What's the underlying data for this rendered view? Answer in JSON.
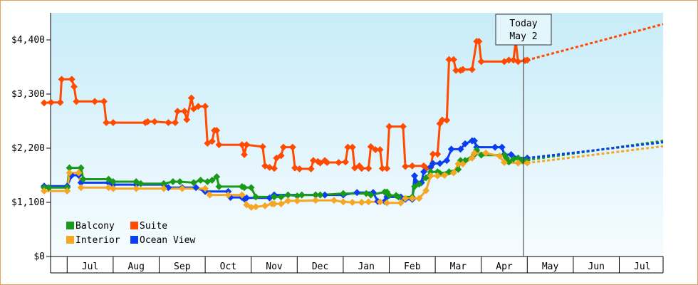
{
  "chart_data": {
    "type": "line",
    "y_ticks": [
      "$0",
      "$1,100",
      "$2,200",
      "$3,300",
      "$4,400"
    ],
    "y_tick_values": [
      0,
      1100,
      2200,
      3300,
      4400
    ],
    "ylim": [
      0,
      4950
    ],
    "x_months": [
      "Jul",
      "Aug",
      "Sep",
      "Oct",
      "Nov",
      "Dec",
      "Jan",
      "Feb",
      "Mar",
      "Apr",
      "May",
      "Jun",
      "Jul"
    ],
    "grid": false,
    "legend": {
      "placement": "bottom-left",
      "entries": [
        {
          "label": "Balcony",
          "color": "#1a9a1a"
        },
        {
          "label": "Suite",
          "color": "#ff4a00"
        },
        {
          "label": "Interior",
          "color": "#f5a623"
        },
        {
          "label": "Ocean View",
          "color": "#0a3ef0"
        }
      ]
    },
    "today_marker": {
      "line1": "Today",
      "line2": "May 2"
    },
    "series": [
      {
        "name": "Suite",
        "color": "#ff4a00",
        "points": [
          [
            0,
            3120
          ],
          [
            0.15,
            3130
          ],
          [
            0.35,
            3130
          ],
          [
            0.38,
            3600
          ],
          [
            0.6,
            3600
          ],
          [
            0.65,
            3450
          ],
          [
            0.7,
            3150
          ],
          [
            1.1,
            3150
          ],
          [
            1.3,
            3150
          ],
          [
            1.35,
            2720
          ],
          [
            1.5,
            2720
          ],
          [
            2.2,
            2720
          ],
          [
            2.25,
            2740
          ],
          [
            2.4,
            2740
          ],
          [
            2.7,
            2720
          ],
          [
            2.85,
            2720
          ],
          [
            2.9,
            2950
          ],
          [
            3.05,
            2950
          ],
          [
            3.1,
            2780
          ],
          [
            3.2,
            3220
          ],
          [
            3.25,
            3000
          ],
          [
            3.35,
            3050
          ],
          [
            3.5,
            3050
          ],
          [
            3.55,
            2300
          ],
          [
            3.65,
            2340
          ],
          [
            3.7,
            2560
          ],
          [
            3.75,
            2560
          ],
          [
            3.8,
            2270
          ],
          [
            4.3,
            2270
          ],
          [
            4.35,
            2070
          ],
          [
            4.4,
            2270
          ],
          [
            4.75,
            2230
          ],
          [
            4.8,
            1840
          ],
          [
            4.9,
            1810
          ],
          [
            5.0,
            1790
          ],
          [
            5.05,
            2000
          ],
          [
            5.15,
            2050
          ],
          [
            5.2,
            2220
          ],
          [
            5.4,
            2220
          ],
          [
            5.45,
            1800
          ],
          [
            5.55,
            1780
          ],
          [
            5.8,
            1780
          ],
          [
            5.85,
            1950
          ],
          [
            5.95,
            1930
          ],
          [
            6.0,
            1900
          ],
          [
            6.1,
            1950
          ],
          [
            6.15,
            1910
          ],
          [
            6.4,
            1910
          ],
          [
            6.55,
            1920
          ],
          [
            6.6,
            2220
          ],
          [
            6.7,
            2220
          ],
          [
            6.75,
            1800
          ],
          [
            6.85,
            1840
          ],
          [
            6.9,
            1790
          ],
          [
            7.05,
            1790
          ],
          [
            7.1,
            2230
          ],
          [
            7.2,
            2170
          ],
          [
            7.3,
            2170
          ],
          [
            7.35,
            1790
          ],
          [
            7.45,
            1790
          ],
          [
            7.5,
            2640
          ],
          [
            7.8,
            2640
          ],
          [
            7.85,
            1830
          ],
          [
            8.0,
            1840
          ],
          [
            8.25,
            1840
          ],
          [
            8.3,
            1800
          ],
          [
            8.4,
            1810
          ],
          [
            8.45,
            2080
          ],
          [
            8.55,
            2080
          ],
          [
            8.6,
            2700
          ],
          [
            8.65,
            2770
          ],
          [
            8.75,
            2770
          ],
          [
            8.8,
            4000
          ],
          [
            8.9,
            4000
          ],
          [
            8.95,
            3780
          ],
          [
            9.05,
            3780
          ],
          [
            9.1,
            3800
          ],
          [
            9.3,
            3800
          ],
          [
            9.4,
            4370
          ],
          [
            9.45,
            4370
          ],
          [
            9.5,
            3960
          ],
          [
            10.0,
            3960
          ],
          [
            10.1,
            3990
          ],
          [
            10.2,
            3990
          ],
          [
            10.25,
            4370
          ],
          [
            10.3,
            3960
          ],
          [
            10.45,
            3980
          ],
          [
            10.5,
            3990
          ]
        ]
      },
      {
        "name": "Ocean View",
        "color": "#0a3ef0",
        "points": [
          [
            0,
            1430
          ],
          [
            0.5,
            1430
          ],
          [
            0.6,
            1650
          ],
          [
            0.75,
            1650
          ],
          [
            0.8,
            1500
          ],
          [
            1.4,
            1500
          ],
          [
            1.5,
            1460
          ],
          [
            2.0,
            1460
          ],
          [
            2.6,
            1460
          ],
          [
            2.7,
            1400
          ],
          [
            3.0,
            1400
          ],
          [
            3.3,
            1400
          ],
          [
            3.5,
            1320
          ],
          [
            4.0,
            1320
          ],
          [
            4.05,
            1200
          ],
          [
            4.3,
            1200
          ],
          [
            4.35,
            1170
          ],
          [
            4.4,
            1190
          ],
          [
            4.9,
            1190
          ],
          [
            5.0,
            1250
          ],
          [
            5.9,
            1250
          ],
          [
            6.1,
            1250
          ],
          [
            6.5,
            1250
          ],
          [
            6.8,
            1300
          ],
          [
            7.15,
            1300
          ],
          [
            7.25,
            1120
          ],
          [
            7.4,
            1120
          ],
          [
            7.45,
            1210
          ],
          [
            7.75,
            1210
          ],
          [
            7.85,
            1160
          ],
          [
            8.0,
            1160
          ],
          [
            8.05,
            1640
          ],
          [
            8.1,
            1500
          ],
          [
            8.2,
            1500
          ],
          [
            8.25,
            1720
          ],
          [
            8.4,
            1820
          ],
          [
            8.45,
            1890
          ],
          [
            8.6,
            1890
          ],
          [
            8.75,
            1950
          ],
          [
            8.85,
            2180
          ],
          [
            9.05,
            2180
          ],
          [
            9.15,
            2290
          ],
          [
            9.3,
            2350
          ],
          [
            9.35,
            2350
          ],
          [
            9.4,
            2220
          ],
          [
            9.8,
            2220
          ],
          [
            9.95,
            2220
          ],
          [
            10.0,
            2070
          ],
          [
            10.15,
            2070
          ],
          [
            10.3,
            2000
          ],
          [
            10.5,
            2000
          ]
        ]
      },
      {
        "name": "Balcony",
        "color": "#1a9a1a",
        "points": [
          [
            0,
            1400
          ],
          [
            0.1,
            1400
          ],
          [
            0.5,
            1400
          ],
          [
            0.55,
            1800
          ],
          [
            0.8,
            1800
          ],
          [
            0.85,
            1570
          ],
          [
            1.4,
            1570
          ],
          [
            1.5,
            1520
          ],
          [
            2.0,
            1520
          ],
          [
            2.1,
            1480
          ],
          [
            2.6,
            1480
          ],
          [
            2.8,
            1520
          ],
          [
            2.95,
            1520
          ],
          [
            3.25,
            1500
          ],
          [
            3.4,
            1550
          ],
          [
            3.55,
            1520
          ],
          [
            3.65,
            1550
          ],
          [
            3.75,
            1620
          ],
          [
            3.8,
            1420
          ],
          [
            4.3,
            1420
          ],
          [
            4.35,
            1400
          ],
          [
            4.5,
            1400
          ],
          [
            4.6,
            1210
          ],
          [
            5.0,
            1210
          ],
          [
            5.15,
            1210
          ],
          [
            5.3,
            1250
          ],
          [
            5.5,
            1230
          ],
          [
            5.6,
            1250
          ],
          [
            5.9,
            1250
          ],
          [
            6.0,
            1250
          ],
          [
            6.5,
            1280
          ],
          [
            7.0,
            1280
          ],
          [
            7.1,
            1250
          ],
          [
            7.4,
            1310
          ],
          [
            7.45,
            1310
          ],
          [
            7.5,
            1240
          ],
          [
            7.65,
            1240
          ],
          [
            7.7,
            1210
          ],
          [
            8.0,
            1210
          ],
          [
            8.05,
            1420
          ],
          [
            8.15,
            1470
          ],
          [
            8.3,
            1600
          ],
          [
            8.4,
            1720
          ],
          [
            8.55,
            1720
          ],
          [
            8.6,
            1690
          ],
          [
            8.8,
            1720
          ],
          [
            9.0,
            1770
          ],
          [
            9.05,
            1950
          ],
          [
            9.15,
            1950
          ],
          [
            9.35,
            2070
          ],
          [
            9.4,
            2160
          ],
          [
            9.5,
            2060
          ],
          [
            10.0,
            2060
          ],
          [
            10.05,
            2000
          ],
          [
            10.1,
            1920
          ],
          [
            10.2,
            1980
          ],
          [
            10.3,
            2000
          ],
          [
            10.4,
            1950
          ],
          [
            10.5,
            1960
          ]
        ]
      },
      {
        "name": "Interior",
        "color": "#f5a623",
        "points": [
          [
            0,
            1330
          ],
          [
            0.5,
            1330
          ],
          [
            0.55,
            1700
          ],
          [
            0.75,
            1700
          ],
          [
            0.8,
            1400
          ],
          [
            1.4,
            1400
          ],
          [
            1.5,
            1380
          ],
          [
            2.0,
            1380
          ],
          [
            2.6,
            1380
          ],
          [
            3.0,
            1380
          ],
          [
            3.5,
            1380
          ],
          [
            3.6,
            1250
          ],
          [
            4.0,
            1250
          ],
          [
            4.3,
            1250
          ],
          [
            4.4,
            1050
          ],
          [
            4.5,
            1000
          ],
          [
            4.6,
            1010
          ],
          [
            4.8,
            1030
          ],
          [
            4.95,
            1070
          ],
          [
            5.0,
            1070
          ],
          [
            5.15,
            1070
          ],
          [
            5.3,
            1130
          ],
          [
            5.5,
            1130
          ],
          [
            5.9,
            1140
          ],
          [
            6.3,
            1140
          ],
          [
            6.5,
            1110
          ],
          [
            6.7,
            1100
          ],
          [
            6.9,
            1100
          ],
          [
            7.05,
            1110
          ],
          [
            7.3,
            1110
          ],
          [
            7.45,
            1090
          ],
          [
            7.75,
            1090
          ],
          [
            7.85,
            1180
          ],
          [
            8.0,
            1180
          ],
          [
            8.15,
            1180
          ],
          [
            8.3,
            1340
          ],
          [
            8.4,
            1640
          ],
          [
            8.55,
            1640
          ],
          [
            8.7,
            1650
          ],
          [
            8.9,
            1700
          ],
          [
            9.0,
            1880
          ],
          [
            9.1,
            1880
          ],
          [
            9.3,
            2000
          ],
          [
            9.35,
            2100
          ],
          [
            9.6,
            2100
          ],
          [
            9.9,
            2040
          ],
          [
            10.0,
            1910
          ],
          [
            10.3,
            1900
          ],
          [
            10.5,
            1900
          ]
        ]
      }
    ],
    "forecast": [
      {
        "name": "Suite",
        "color": "#ff4a00",
        "start": 3990,
        "end": 4720
      },
      {
        "name": "Balcony",
        "color": "#1a9a1a",
        "start": 1960,
        "end": 2350
      },
      {
        "name": "Ocean View",
        "color": "#0a3ef0",
        "start": 2000,
        "end": 2320
      },
      {
        "name": "Interior",
        "color": "#f5a623",
        "start": 1900,
        "end": 2240
      }
    ]
  }
}
